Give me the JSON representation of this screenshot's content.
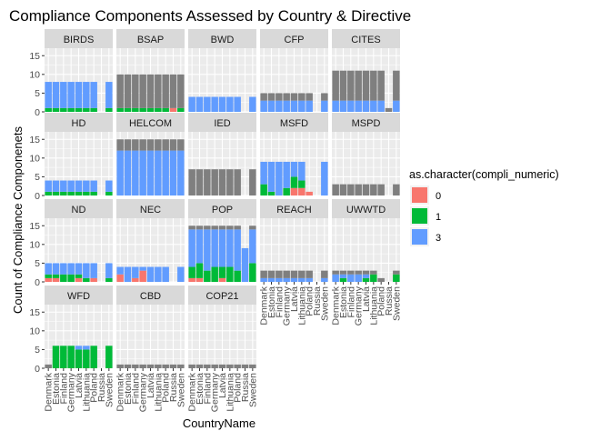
{
  "chart_data": {
    "type": "bar",
    "title": "Compliance Components Assessed by Country & Directive",
    "xlabel": "CountryName",
    "ylabel": "Count of Compliance Componenets",
    "categories": [
      "Denmark",
      "Estonia",
      "Finland",
      "Germany",
      "Latvia",
      "Lithuania",
      "Poland",
      "Russia",
      "Sweden"
    ],
    "ylim": [
      0,
      17
    ],
    "yticks": [
      0,
      5,
      10,
      15
    ],
    "legend": {
      "title": "as.character(compli_numeric)",
      "position": "right",
      "items": [
        {
          "label": "0",
          "color": "#F8766D"
        },
        {
          "label": "1",
          "color": "#00BA38"
        },
        {
          "label": "3",
          "color": "#619CFF"
        }
      ],
      "na_color": "#7F7F7F"
    },
    "stack_order": [
      "NA",
      "3",
      "1",
      "0"
    ],
    "panels": [
      {
        "name": "BIRDS",
        "values": [
          {
            "0": 0,
            "1": 1,
            "3": 7,
            "NA": 0
          },
          {
            "0": 0,
            "1": 1,
            "3": 7,
            "NA": 0
          },
          {
            "0": 0,
            "1": 1,
            "3": 7,
            "NA": 0
          },
          {
            "0": 0,
            "1": 1,
            "3": 7,
            "NA": 0
          },
          {
            "0": 0,
            "1": 1,
            "3": 7,
            "NA": 0
          },
          {
            "0": 0,
            "1": 1,
            "3": 7,
            "NA": 0
          },
          {
            "0": 0,
            "1": 1,
            "3": 7,
            "NA": 0
          },
          null,
          {
            "0": 0,
            "1": 1,
            "3": 7,
            "NA": 0
          }
        ]
      },
      {
        "name": "BSAP",
        "values": [
          {
            "0": 0,
            "1": 1,
            "3": 0,
            "NA": 9
          },
          {
            "0": 0,
            "1": 1,
            "3": 0,
            "NA": 9
          },
          {
            "0": 0,
            "1": 1,
            "3": 0,
            "NA": 9
          },
          {
            "0": 0,
            "1": 1,
            "3": 0,
            "NA": 9
          },
          {
            "0": 0,
            "1": 1,
            "3": 0,
            "NA": 9
          },
          {
            "0": 0,
            "1": 1,
            "3": 0,
            "NA": 9
          },
          {
            "0": 0,
            "1": 1,
            "3": 0,
            "NA": 9
          },
          {
            "0": 1,
            "1": 0,
            "3": 0,
            "NA": 9
          },
          {
            "0": 0,
            "1": 1,
            "3": 0,
            "NA": 9
          }
        ]
      },
      {
        "name": "BWD",
        "values": [
          {
            "0": 0,
            "1": 0,
            "3": 4,
            "NA": 0
          },
          {
            "0": 0,
            "1": 0,
            "3": 4,
            "NA": 0
          },
          {
            "0": 0,
            "1": 0,
            "3": 4,
            "NA": 0
          },
          {
            "0": 0,
            "1": 0,
            "3": 4,
            "NA": 0
          },
          {
            "0": 0,
            "1": 0,
            "3": 4,
            "NA": 0
          },
          {
            "0": 0,
            "1": 0,
            "3": 4,
            "NA": 0
          },
          {
            "0": 0,
            "1": 0,
            "3": 4,
            "NA": 0
          },
          null,
          {
            "0": 0,
            "1": 0,
            "3": 4,
            "NA": 0
          }
        ]
      },
      {
        "name": "CFP",
        "values": [
          {
            "0": 0,
            "1": 0,
            "3": 3,
            "NA": 2
          },
          {
            "0": 0,
            "1": 0,
            "3": 3,
            "NA": 2
          },
          {
            "0": 0,
            "1": 0,
            "3": 3,
            "NA": 2
          },
          {
            "0": 0,
            "1": 0,
            "3": 3,
            "NA": 2
          },
          {
            "0": 0,
            "1": 0,
            "3": 3,
            "NA": 2
          },
          {
            "0": 0,
            "1": 0,
            "3": 3,
            "NA": 2
          },
          {
            "0": 0,
            "1": 0,
            "3": 3,
            "NA": 2
          },
          null,
          {
            "0": 0,
            "1": 0,
            "3": 3,
            "NA": 2
          }
        ]
      },
      {
        "name": "CITES",
        "values": [
          {
            "0": 0,
            "1": 0,
            "3": 3,
            "NA": 8
          },
          {
            "0": 0,
            "1": 0,
            "3": 3,
            "NA": 8
          },
          {
            "0": 0,
            "1": 0,
            "3": 3,
            "NA": 8
          },
          {
            "0": 0,
            "1": 0,
            "3": 3,
            "NA": 8
          },
          {
            "0": 0,
            "1": 0,
            "3": 3,
            "NA": 8
          },
          {
            "0": 0,
            "1": 0,
            "3": 3,
            "NA": 8
          },
          {
            "0": 0,
            "1": 0,
            "3": 3,
            "NA": 8
          },
          {
            "0": 0,
            "1": 0,
            "3": 0,
            "NA": 1
          },
          {
            "0": 0,
            "1": 0,
            "3": 3,
            "NA": 8
          }
        ]
      },
      {
        "name": "HD",
        "values": [
          {
            "0": 0,
            "1": 1,
            "3": 3,
            "NA": 0
          },
          {
            "0": 0,
            "1": 1,
            "3": 3,
            "NA": 0
          },
          {
            "0": 0,
            "1": 1,
            "3": 3,
            "NA": 0
          },
          {
            "0": 0,
            "1": 1,
            "3": 3,
            "NA": 0
          },
          {
            "0": 0,
            "1": 1,
            "3": 3,
            "NA": 0
          },
          {
            "0": 0,
            "1": 1,
            "3": 3,
            "NA": 0
          },
          {
            "0": 0,
            "1": 1,
            "3": 3,
            "NA": 0
          },
          null,
          {
            "0": 0,
            "1": 1,
            "3": 3,
            "NA": 0
          }
        ]
      },
      {
        "name": "HELCOM",
        "values": [
          {
            "0": 0,
            "1": 0,
            "3": 12,
            "NA": 3
          },
          {
            "0": 0,
            "1": 0,
            "3": 12,
            "NA": 3
          },
          {
            "0": 0,
            "1": 0,
            "3": 12,
            "NA": 3
          },
          {
            "0": 0,
            "1": 0,
            "3": 12,
            "NA": 3
          },
          {
            "0": 0,
            "1": 0,
            "3": 12,
            "NA": 3
          },
          {
            "0": 0,
            "1": 0,
            "3": 12,
            "NA": 3
          },
          {
            "0": 0,
            "1": 0,
            "3": 12,
            "NA": 3
          },
          {
            "0": 0,
            "1": 0,
            "3": 12,
            "NA": 3
          },
          {
            "0": 0,
            "1": 0,
            "3": 12,
            "NA": 3
          }
        ]
      },
      {
        "name": "IED",
        "values": [
          {
            "0": 0,
            "1": 0,
            "3": 0,
            "NA": 7
          },
          {
            "0": 0,
            "1": 0,
            "3": 0,
            "NA": 7
          },
          {
            "0": 0,
            "1": 0,
            "3": 0,
            "NA": 7
          },
          {
            "0": 0,
            "1": 0,
            "3": 0,
            "NA": 7
          },
          {
            "0": 0,
            "1": 0,
            "3": 0,
            "NA": 7
          },
          {
            "0": 0,
            "1": 0,
            "3": 0,
            "NA": 7
          },
          {
            "0": 0,
            "1": 0,
            "3": 0,
            "NA": 7
          },
          null,
          {
            "0": 0,
            "1": 0,
            "3": 0,
            "NA": 7
          }
        ]
      },
      {
        "name": "MSFD",
        "values": [
          {
            "0": 0,
            "1": 3,
            "3": 6,
            "NA": 0
          },
          {
            "0": 0,
            "1": 1,
            "3": 8,
            "NA": 0
          },
          {
            "0": 0,
            "1": 0,
            "3": 9,
            "NA": 0
          },
          {
            "0": 0,
            "1": 2,
            "3": 7,
            "NA": 0
          },
          {
            "0": 2,
            "1": 3,
            "3": 4,
            "NA": 0
          },
          {
            "0": 2,
            "1": 2,
            "3": 5,
            "NA": 0
          },
          {
            "0": 1,
            "1": 0,
            "3": 0,
            "NA": 0
          },
          null,
          {
            "0": 0,
            "1": 0,
            "3": 9,
            "NA": 0
          }
        ]
      },
      {
        "name": "MSPD",
        "values": [
          {
            "0": 0,
            "1": 0,
            "3": 0,
            "NA": 3
          },
          {
            "0": 0,
            "1": 0,
            "3": 0,
            "NA": 3
          },
          {
            "0": 0,
            "1": 0,
            "3": 0,
            "NA": 3
          },
          {
            "0": 0,
            "1": 0,
            "3": 0,
            "NA": 3
          },
          {
            "0": 0,
            "1": 0,
            "3": 0,
            "NA": 3
          },
          {
            "0": 0,
            "1": 0,
            "3": 0,
            "NA": 3
          },
          {
            "0": 0,
            "1": 0,
            "3": 0,
            "NA": 3
          },
          null,
          {
            "0": 0,
            "1": 0,
            "3": 0,
            "NA": 3
          }
        ]
      },
      {
        "name": "ND",
        "values": [
          {
            "0": 1,
            "1": 1,
            "3": 3,
            "NA": 0
          },
          {
            "0": 1,
            "1": 1,
            "3": 3,
            "NA": 0
          },
          {
            "0": 0,
            "1": 2,
            "3": 3,
            "NA": 0
          },
          {
            "0": 0,
            "1": 2,
            "3": 3,
            "NA": 0
          },
          {
            "0": 1,
            "1": 1,
            "3": 3,
            "NA": 0
          },
          {
            "0": 0,
            "1": 1,
            "3": 4,
            "NA": 0
          },
          {
            "0": 1,
            "1": 0,
            "3": 4,
            "NA": 0
          },
          null,
          {
            "0": 0,
            "1": 1,
            "3": 4,
            "NA": 0
          }
        ]
      },
      {
        "name": "NEC",
        "values": [
          {
            "0": 2,
            "1": 0,
            "3": 2,
            "NA": 0
          },
          {
            "0": 0,
            "1": 0,
            "3": 4,
            "NA": 0
          },
          {
            "0": 1,
            "1": 0,
            "3": 3,
            "NA": 0
          },
          {
            "0": 3,
            "1": 0,
            "3": 1,
            "NA": 0
          },
          {
            "0": 0,
            "1": 0,
            "3": 4,
            "NA": 0
          },
          {
            "0": 0,
            "1": 0,
            "3": 4,
            "NA": 0
          },
          {
            "0": 0,
            "1": 0,
            "3": 4,
            "NA": 0
          },
          null,
          {
            "0": 0,
            "1": 0,
            "3": 4,
            "NA": 0
          }
        ]
      },
      {
        "name": "POP",
        "values": [
          {
            "0": 1,
            "1": 3,
            "3": 10,
            "NA": 1
          },
          {
            "0": 1,
            "1": 4,
            "3": 9,
            "NA": 1
          },
          {
            "0": 0,
            "1": 3,
            "3": 11,
            "NA": 1
          },
          {
            "0": 0,
            "1": 4,
            "3": 10,
            "NA": 1
          },
          {
            "0": 1,
            "1": 3,
            "3": 10,
            "NA": 1
          },
          {
            "0": 0,
            "1": 4,
            "3": 10,
            "NA": 1
          },
          {
            "0": 0,
            "1": 3,
            "3": 11,
            "NA": 1
          },
          {
            "0": 0,
            "1": 0,
            "3": 9,
            "NA": 0
          },
          {
            "0": 0,
            "1": 5,
            "3": 9,
            "NA": 1
          }
        ]
      },
      {
        "name": "REACH",
        "values": [
          {
            "0": 0,
            "1": 0,
            "3": 1,
            "NA": 2
          },
          {
            "0": 0,
            "1": 0,
            "3": 1,
            "NA": 2
          },
          {
            "0": 0,
            "1": 0,
            "3": 1,
            "NA": 2
          },
          {
            "0": 0,
            "1": 0,
            "3": 1,
            "NA": 2
          },
          {
            "0": 0,
            "1": 0,
            "3": 1,
            "NA": 2
          },
          {
            "0": 0,
            "1": 0,
            "3": 1,
            "NA": 2
          },
          {
            "0": 0,
            "1": 0,
            "3": 1,
            "NA": 2
          },
          null,
          {
            "0": 0,
            "1": 0,
            "3": 1,
            "NA": 2
          }
        ]
      },
      {
        "name": "UWWTD",
        "values": [
          {
            "0": 0,
            "1": 0,
            "3": 2,
            "NA": 1
          },
          {
            "0": 0,
            "1": 1,
            "3": 1,
            "NA": 1
          },
          {
            "0": 0,
            "1": 0,
            "3": 2,
            "NA": 1
          },
          {
            "0": 0,
            "1": 0,
            "3": 2,
            "NA": 1
          },
          {
            "0": 0,
            "1": 1,
            "3": 1,
            "NA": 1
          },
          {
            "0": 0,
            "1": 2,
            "3": 0,
            "NA": 1
          },
          {
            "0": 0,
            "1": 0,
            "3": 0,
            "NA": 1
          },
          null,
          {
            "0": 0,
            "1": 2,
            "3": 0,
            "NA": 1
          }
        ]
      },
      {
        "name": "WFD",
        "values": [
          {
            "0": 0,
            "1": 0,
            "3": 0,
            "NA": 1
          },
          {
            "0": 0,
            "1": 6,
            "3": 0,
            "NA": 0
          },
          {
            "0": 0,
            "1": 6,
            "3": 0,
            "NA": 0
          },
          {
            "0": 0,
            "1": 6,
            "3": 0,
            "NA": 0
          },
          {
            "0": 0,
            "1": 5,
            "3": 1,
            "NA": 0
          },
          {
            "0": 0,
            "1": 5,
            "3": 1,
            "NA": 0
          },
          {
            "0": 0,
            "1": 6,
            "3": 0,
            "NA": 0
          },
          null,
          {
            "0": 0,
            "1": 6,
            "3": 0,
            "NA": 0
          }
        ]
      },
      {
        "name": "CBD",
        "values": [
          {
            "0": 0,
            "1": 0,
            "3": 0,
            "NA": 1
          },
          {
            "0": 0,
            "1": 0,
            "3": 0,
            "NA": 1
          },
          {
            "0": 0,
            "1": 0,
            "3": 0,
            "NA": 1
          },
          {
            "0": 0,
            "1": 0,
            "3": 0,
            "NA": 1
          },
          {
            "0": 0,
            "1": 0,
            "3": 0,
            "NA": 1
          },
          {
            "0": 0,
            "1": 0,
            "3": 0,
            "NA": 1
          },
          {
            "0": 0,
            "1": 0,
            "3": 0,
            "NA": 1
          },
          {
            "0": 0,
            "1": 0,
            "3": 0,
            "NA": 1
          },
          {
            "0": 0,
            "1": 0,
            "3": 0,
            "NA": 1
          }
        ]
      },
      {
        "name": "COP21",
        "values": [
          {
            "0": 0,
            "1": 0,
            "3": 0,
            "NA": 1
          },
          {
            "0": 0,
            "1": 0,
            "3": 0,
            "NA": 1
          },
          {
            "0": 0,
            "1": 0,
            "3": 0,
            "NA": 1
          },
          {
            "0": 0,
            "1": 0,
            "3": 0,
            "NA": 1
          },
          {
            "0": 0,
            "1": 0,
            "3": 0,
            "NA": 1
          },
          {
            "0": 0,
            "1": 0,
            "3": 0,
            "NA": 1
          },
          {
            "0": 0,
            "1": 0,
            "3": 0,
            "NA": 1
          },
          {
            "0": 0,
            "1": 0,
            "3": 0,
            "NA": 1
          },
          {
            "0": 0,
            "1": 0,
            "3": 0,
            "NA": 1
          }
        ]
      }
    ]
  }
}
